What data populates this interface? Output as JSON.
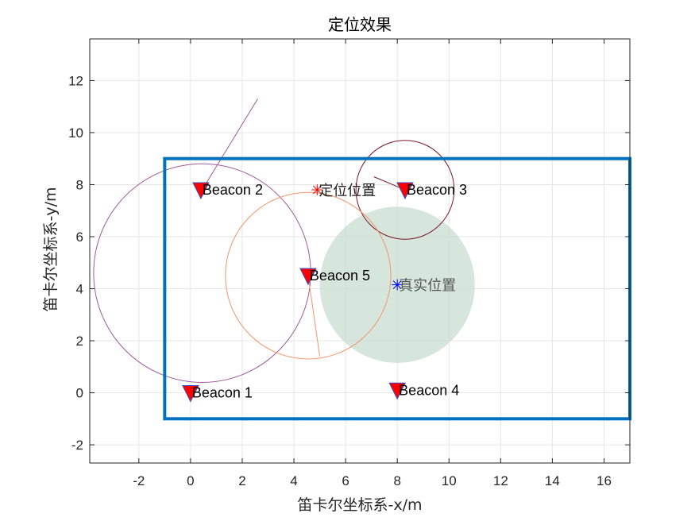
{
  "chart_data": {
    "type": "scatter",
    "title": "定位效果",
    "xlabel": "笛卡尔坐标系-x/m",
    "ylabel": "笛卡尔坐标系-y/m",
    "xlim": [
      -3.9,
      17
    ],
    "ylim": [
      -2.7,
      13.6
    ],
    "xticks": [
      -2,
      0,
      2,
      4,
      6,
      8,
      10,
      12,
      14,
      16
    ],
    "yticks": [
      -2,
      0,
      2,
      4,
      6,
      8,
      10,
      12
    ],
    "grid": true,
    "boundary": {
      "x": [
        -1,
        17
      ],
      "y": [
        -1,
        9
      ],
      "color": "#0072BD"
    },
    "beacons": [
      {
        "label": "Beacon 1",
        "x": 0.0,
        "y": 0.0
      },
      {
        "label": "Beacon 2",
        "x": 0.4,
        "y": 7.8
      },
      {
        "label": "Beacon 3",
        "x": 8.3,
        "y": 7.8
      },
      {
        "label": "Beacon 4",
        "x": 8.0,
        "y": 0.1
      },
      {
        "label": "Beacon 5",
        "x": 4.55,
        "y": 4.5
      }
    ],
    "range_circles": [
      {
        "cx": 0.45,
        "cy": 4.6,
        "r": 4.2,
        "color": "#A05A99",
        "spoke": [
          [
            0.45,
            7.8
          ],
          [
            2.6,
            11.3
          ]
        ]
      },
      {
        "cx": 8.3,
        "cy": 7.8,
        "r": 1.9,
        "color": "#7A1728",
        "spoke": [
          [
            7.1,
            8.3
          ],
          [
            8.3,
            7.8
          ]
        ]
      },
      {
        "cx": 4.55,
        "cy": 4.5,
        "r": 3.2,
        "color": "#F0966A",
        "spoke": [
          [
            5.0,
            1.4
          ],
          [
            4.55,
            4.5
          ]
        ]
      }
    ],
    "true_region": {
      "cx": 8.0,
      "cy": 4.15,
      "r": 3.0,
      "color": "#C5DCCF"
    },
    "estimated_position": {
      "label": "定位位置",
      "x": 4.9,
      "y": 7.8,
      "color": "#FF0000"
    },
    "true_position": {
      "label": "真实位置",
      "x": 8.0,
      "y": 4.15,
      "color": "#0000FF"
    }
  }
}
